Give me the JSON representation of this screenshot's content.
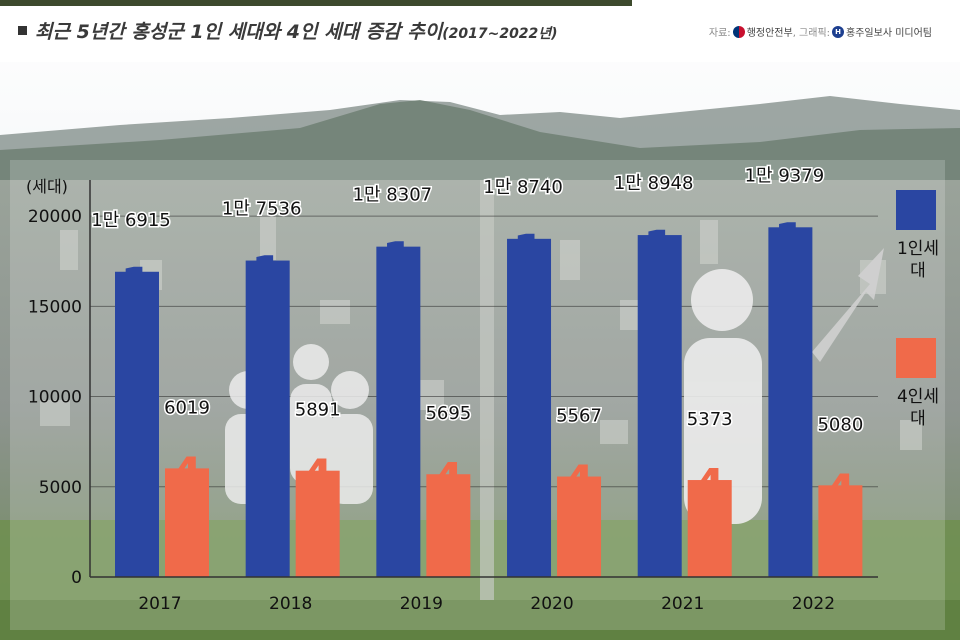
{
  "title": {
    "main": "최근 5년간 홍성군 1인 세대와 4인 세대 증감 추이",
    "sub": "(2017~2022년)"
  },
  "source": {
    "label": "자료:",
    "agency": "행정안전부",
    "graphic_label": ", 그래픽:",
    "publisher": "홍주일보사 미디어팀"
  },
  "colors": {
    "one_person": "#2a46a2",
    "four_person": "#f06a4a",
    "title_rule": "#3d4a2d"
  },
  "legend": {
    "one_person": "1인세대",
    "four_person": "4인세대"
  },
  "chart_data": {
    "type": "bar",
    "ylabel": "(세대)",
    "ylim": [
      0,
      22000
    ],
    "yticks": [
      0,
      5000,
      10000,
      15000,
      20000
    ],
    "grid": true,
    "legend_position": "right",
    "categories": [
      "2017",
      "2018",
      "2019",
      "2020",
      "2021",
      "2022"
    ],
    "series": [
      {
        "name": "1인세대",
        "values": [
          16915,
          17536,
          18307,
          18740,
          18948,
          19379
        ],
        "labels": [
          "1만 6915",
          "1만 7536",
          "1만 8307",
          "1만 8740",
          "1만 8948",
          "1만 9379"
        ],
        "bar_glyph": "1"
      },
      {
        "name": "4인세대",
        "values": [
          6019,
          5891,
          5695,
          5567,
          5373,
          5080
        ],
        "labels": [
          "6019",
          "5891",
          "5695",
          "5567",
          "5373",
          "5080"
        ],
        "bar_glyph": "4"
      }
    ]
  }
}
